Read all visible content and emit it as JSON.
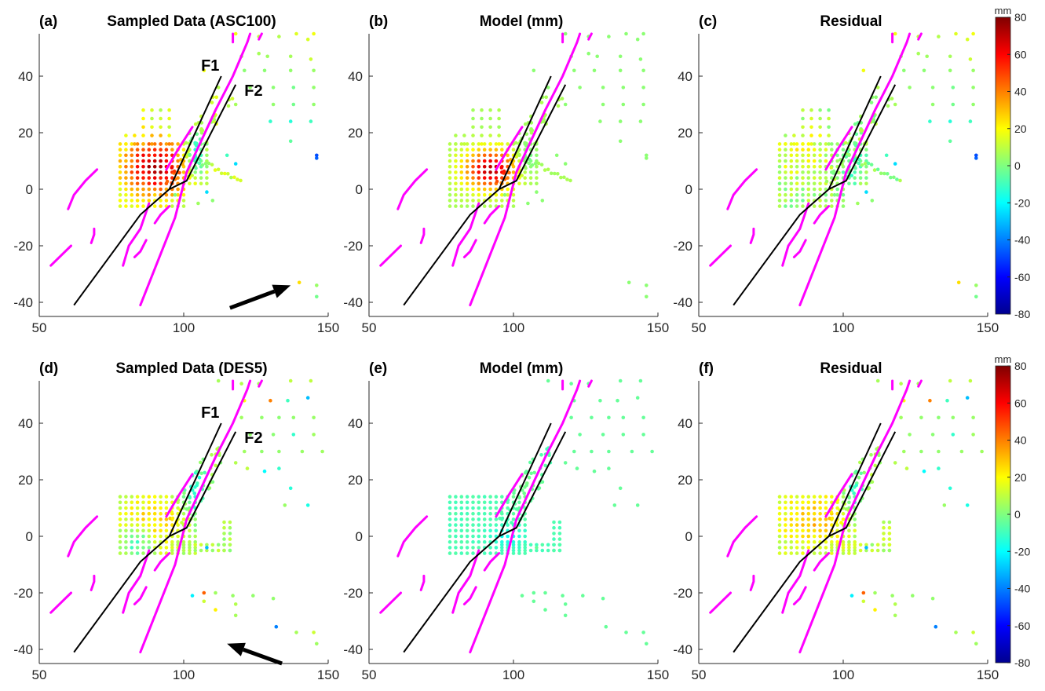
{
  "chart_data": {
    "type": "scatter",
    "layout": "2x3 panel grid",
    "xlim": [
      50,
      150
    ],
    "ylim": [
      -45,
      55
    ],
    "xticks": [
      50,
      100,
      150
    ],
    "yticks": [
      -40,
      -20,
      0,
      20,
      40
    ],
    "grid": false,
    "colorbar": {
      "unit": "mm",
      "min": -80,
      "max": 80,
      "ticks": [
        -80,
        -60,
        -40,
        -20,
        0,
        20,
        40,
        60,
        80
      ],
      "colormap": "jet"
    },
    "colors": {
      "fault_traces": "#ff00ff",
      "model_faults": "#000000",
      "arrow": "#000000"
    },
    "faults": {
      "F1": [
        [
          62,
          -41
        ],
        [
          85,
          -9
        ],
        [
          95,
          0
        ],
        [
          113,
          40
        ]
      ],
      "F2": [
        [
          95,
          0
        ],
        [
          101,
          3
        ],
        [
          118,
          37
        ]
      ]
    },
    "fault_labels": [
      {
        "text": "F1",
        "x": 106,
        "y": 42
      },
      {
        "text": "F2",
        "x": 121,
        "y": 33
      }
    ],
    "mapped_traces": [
      [
        [
          85,
          -41
        ],
        [
          97,
          -10
        ],
        [
          101,
          6
        ],
        [
          111,
          28
        ],
        [
          117,
          40
        ],
        [
          122,
          52
        ],
        [
          123,
          55
        ]
      ],
      [
        [
          79,
          -27
        ],
        [
          81,
          -20
        ],
        [
          85,
          -14
        ],
        [
          87,
          -8
        ],
        [
          88,
          -5
        ]
      ],
      [
        [
          83,
          -24
        ],
        [
          85,
          -22
        ],
        [
          87,
          -18
        ]
      ],
      [
        [
          90,
          -12
        ],
        [
          92,
          -9
        ],
        [
          95,
          -6
        ]
      ],
      [
        [
          54,
          -27
        ],
        [
          58,
          -23
        ],
        [
          61,
          -20
        ]
      ],
      [
        [
          60,
          -7
        ],
        [
          62,
          -2
        ],
        [
          66,
          3
        ],
        [
          70,
          7
        ]
      ],
      [
        [
          68,
          -19
        ],
        [
          69,
          -16
        ],
        [
          69,
          -14
        ]
      ],
      [
        [
          94,
          7
        ],
        [
          98,
          14
        ],
        [
          103,
          22
        ]
      ],
      [
        [
          126,
          53
        ],
        [
          127,
          55
        ]
      ],
      [
        [
          117,
          52
        ],
        [
          117,
          55
        ]
      ]
    ],
    "panels": [
      {
        "label": "(a)",
        "title": "Sampled Data (ASC100)",
        "fault_labels": true,
        "arrow": {
          "from": [
            116,
            -42
          ],
          "to": [
            137,
            -34
          ]
        },
        "pattern": "asc_data"
      },
      {
        "label": "(b)",
        "title": "Model (mm)",
        "fault_labels": false,
        "arrow": null,
        "pattern": "asc_model"
      },
      {
        "label": "(c)",
        "title": "Residual",
        "fault_labels": false,
        "arrow": null,
        "pattern": "asc_resid"
      },
      {
        "label": "(d)",
        "title": "Sampled Data (DES5)",
        "fault_labels": true,
        "arrow": {
          "from": [
            134,
            -45
          ],
          "to": [
            115,
            -38
          ]
        },
        "pattern": "des_data"
      },
      {
        "label": "(e)",
        "title": "Model (mm)",
        "fault_labels": false,
        "arrow": null,
        "pattern": "des_model"
      },
      {
        "label": "(f)",
        "title": "Residual",
        "fault_labels": false,
        "arrow": null,
        "pattern": "des_resid"
      }
    ],
    "sparse_points_asc": [
      [
        118,
        55,
        18
      ],
      [
        126,
        54,
        10
      ],
      [
        133,
        54,
        8
      ],
      [
        139,
        55,
        15
      ],
      [
        145,
        55,
        18
      ],
      [
        120,
        47,
        4
      ],
      [
        129,
        47,
        5
      ],
      [
        137,
        47,
        6
      ],
      [
        144,
        46,
        12
      ],
      [
        107,
        42,
        18
      ],
      [
        121,
        42,
        2
      ],
      [
        128,
        42,
        2
      ],
      [
        137,
        42,
        3
      ],
      [
        145,
        42,
        4
      ],
      [
        123,
        36,
        3
      ],
      [
        131,
        36,
        2
      ],
      [
        138,
        36,
        -2
      ],
      [
        145,
        36,
        3
      ],
      [
        118,
        30,
        6
      ],
      [
        131,
        30,
        3
      ],
      [
        138,
        30,
        -2
      ],
      [
        145,
        30,
        3
      ],
      [
        130,
        24,
        -12
      ],
      [
        137,
        24,
        -14
      ],
      [
        144,
        24,
        -10
      ],
      [
        137,
        17,
        -5
      ],
      [
        146,
        11,
        -45
      ],
      [
        146,
        12,
        -48
      ],
      [
        115,
        12,
        -10
      ],
      [
        118,
        9,
        -25
      ],
      [
        105,
        -5,
        5
      ],
      [
        110,
        -4,
        2
      ],
      [
        108,
        -1,
        -25
      ],
      [
        97,
        -2,
        0
      ],
      [
        140,
        -33,
        25
      ],
      [
        146,
        -34,
        4
      ],
      [
        146,
        -38,
        -2
      ],
      [
        112,
        36,
        8
      ],
      [
        126,
        48,
        6
      ],
      [
        143,
        53,
        14
      ]
    ],
    "sparse_points_des": [
      [
        112,
        55,
        6
      ],
      [
        120,
        54,
        8
      ],
      [
        126,
        54,
        6
      ],
      [
        137,
        55,
        10
      ],
      [
        144,
        55,
        10
      ],
      [
        130,
        48,
        40
      ],
      [
        121,
        48,
        20
      ],
      [
        136,
        48,
        -10
      ],
      [
        143,
        49,
        -30
      ],
      [
        120,
        42,
        5
      ],
      [
        127,
        42,
        3
      ],
      [
        133,
        42,
        2
      ],
      [
        138,
        42,
        3
      ],
      [
        145,
        42,
        4
      ],
      [
        123,
        36,
        3
      ],
      [
        131,
        36,
        2
      ],
      [
        138,
        36,
        -12
      ],
      [
        145,
        36,
        5
      ],
      [
        121,
        30,
        5
      ],
      [
        127,
        30,
        3
      ],
      [
        133,
        30,
        3
      ],
      [
        141,
        30,
        4
      ],
      [
        148,
        30,
        5
      ],
      [
        118,
        26,
        8
      ],
      [
        122,
        24,
        10
      ],
      [
        128,
        23,
        -20
      ],
      [
        133,
        24,
        -12
      ],
      [
        137,
        17,
        -14
      ],
      [
        143,
        11,
        -16
      ],
      [
        135,
        11,
        4
      ],
      [
        103,
        -21,
        -22
      ],
      [
        107,
        -20,
        45
      ],
      [
        107,
        -23,
        12
      ],
      [
        111,
        -26,
        22
      ],
      [
        117,
        -21,
        4
      ],
      [
        118,
        -28,
        6
      ],
      [
        124,
        -21,
        3
      ],
      [
        131,
        -22,
        3
      ],
      [
        132,
        -32,
        -40
      ],
      [
        139,
        -34,
        6
      ],
      [
        145,
        -34,
        12
      ],
      [
        146,
        -38,
        5
      ],
      [
        111,
        -20,
        5
      ],
      [
        118,
        -24,
        8
      ],
      [
        108,
        -4,
        -30
      ]
    ]
  }
}
